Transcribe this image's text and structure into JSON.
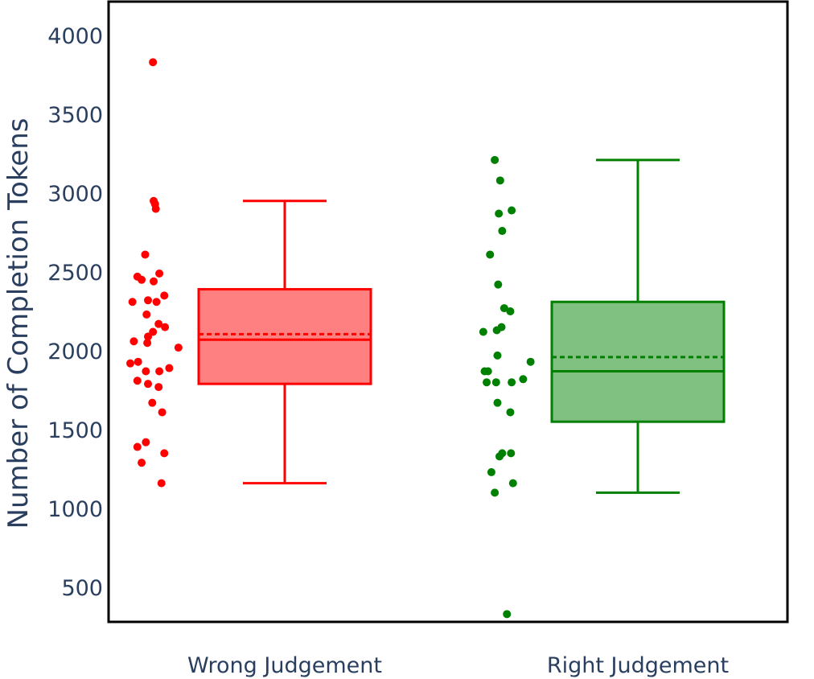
{
  "chart_data": {
    "type": "box",
    "title": "",
    "xlabel": "",
    "ylabel": "Number of Completion Tokens",
    "ylim": [
      280,
      4200
    ],
    "yticks": [
      500,
      1000,
      1500,
      2000,
      2500,
      3000,
      3500,
      4000
    ],
    "ytick_labels": [
      "500",
      "1000",
      "1500",
      "2000",
      "2500",
      "3000",
      "3500",
      "4000"
    ],
    "grid": false,
    "legend": "none",
    "categories": [
      "Wrong Judgement",
      "Right Judgement"
    ],
    "series": [
      {
        "category": "Wrong Judgement",
        "color": "#ff0000",
        "fill": "#ff8080",
        "stats": {
          "lowerfence": 1160,
          "q1": 1790,
          "median": 2070,
          "mean": 2105,
          "q3": 2390,
          "upperfence": 2950
        },
        "points": [
          [
            0.32,
            3830
          ],
          [
            0.33,
            2950
          ],
          [
            0.35,
            2930
          ],
          [
            0.36,
            2900
          ],
          [
            0.21,
            2610
          ],
          [
            0.1,
            2470
          ],
          [
            0.16,
            2450
          ],
          [
            0.41,
            2490
          ],
          [
            0.33,
            2440
          ],
          [
            0.03,
            2310
          ],
          [
            0.25,
            2320
          ],
          [
            0.48,
            2350
          ],
          [
            0.37,
            2310
          ],
          [
            0.23,
            2230
          ],
          [
            0.4,
            2170
          ],
          [
            0.49,
            2150
          ],
          [
            0.32,
            2120
          ],
          [
            0.25,
            2090
          ],
          [
            0.05,
            2060
          ],
          [
            0.24,
            2050
          ],
          [
            0.68,
            2020
          ],
          [
            0.11,
            1930
          ],
          [
            0.0,
            1920
          ],
          [
            0.55,
            1890
          ],
          [
            0.22,
            1870
          ],
          [
            0.41,
            1870
          ],
          [
            0.1,
            1810
          ],
          [
            0.25,
            1790
          ],
          [
            0.4,
            1770
          ],
          [
            0.31,
            1670
          ],
          [
            0.45,
            1610
          ],
          [
            0.22,
            1420
          ],
          [
            0.1,
            1390
          ],
          [
            0.48,
            1350
          ],
          [
            0.16,
            1290
          ],
          [
            0.44,
            1160
          ]
        ]
      },
      {
        "category": "Right Judgement",
        "color": "#008000",
        "fill": "#80c080",
        "stats": {
          "lowerfence": 1100,
          "q1": 1550,
          "median": 1870,
          "mean": 1960,
          "q3": 2310,
          "upperfence": 3210
        },
        "points": [
          [
            0.18,
            3210
          ],
          [
            0.26,
            3080
          ],
          [
            0.43,
            2890
          ],
          [
            0.24,
            2870
          ],
          [
            0.29,
            2760
          ],
          [
            0.11,
            2610
          ],
          [
            0.23,
            2420
          ],
          [
            0.32,
            2270
          ],
          [
            0.41,
            2250
          ],
          [
            0.01,
            2120
          ],
          [
            0.21,
            2130
          ],
          [
            0.28,
            2150
          ],
          [
            0.22,
            1970
          ],
          [
            0.71,
            1930
          ],
          [
            0.03,
            1870
          ],
          [
            0.08,
            1870
          ],
          [
            0.6,
            1820
          ],
          [
            0.06,
            1800
          ],
          [
            0.2,
            1800
          ],
          [
            0.43,
            1800
          ],
          [
            0.22,
            1670
          ],
          [
            0.41,
            1610
          ],
          [
            0.42,
            1350
          ],
          [
            0.29,
            1350
          ],
          [
            0.25,
            1330
          ],
          [
            0.13,
            1230
          ],
          [
            0.45,
            1160
          ],
          [
            0.18,
            1100
          ],
          [
            0.36,
            330
          ]
        ]
      }
    ]
  }
}
